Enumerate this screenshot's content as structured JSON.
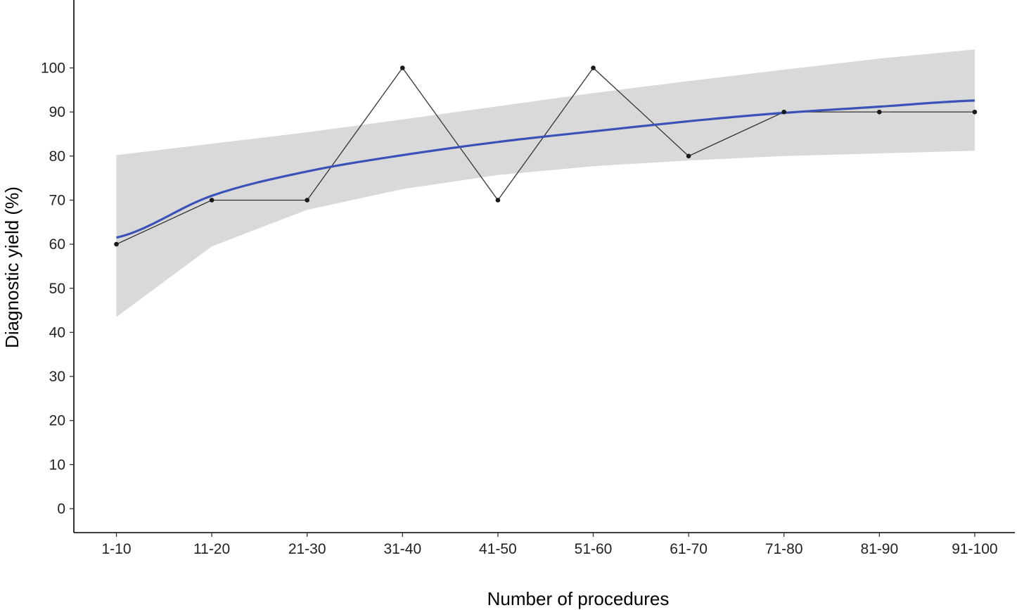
{
  "chart_data": {
    "type": "line",
    "xlabel": "Number of procedures",
    "ylabel": "Diagnostic yield (%)",
    "categories": [
      "1-10",
      "11-20",
      "21-30",
      "31-40",
      "41-50",
      "51-60",
      "61-70",
      "71-80",
      "81-90",
      "91-100"
    ],
    "y_ticks": [
      0,
      10,
      20,
      30,
      40,
      50,
      60,
      70,
      80,
      90,
      100
    ],
    "ylim": [
      -5.5,
      115
    ],
    "grid": false,
    "series": [
      {
        "kind": "observed",
        "values": [
          60,
          70,
          70,
          100,
          70,
          100,
          80,
          90,
          90,
          90
        ],
        "color": "#333333"
      },
      {
        "kind": "fitted",
        "values": [
          61.5,
          71,
          76.5,
          80.2,
          83.2,
          85.6,
          87.9,
          89.8,
          91.2,
          92.6
        ],
        "color": "#3a52b8"
      }
    ],
    "confidence_band": {
      "lower": [
        43.5,
        59.5,
        67.8,
        72.5,
        75.7,
        77.7,
        79.0,
        80.0,
        80.6,
        81.2
      ],
      "upper": [
        80.2,
        82.8,
        85.4,
        88.3,
        91.3,
        94.3,
        97.0,
        99.6,
        102.1,
        104.2
      ],
      "color": "#d9d9d9"
    }
  }
}
